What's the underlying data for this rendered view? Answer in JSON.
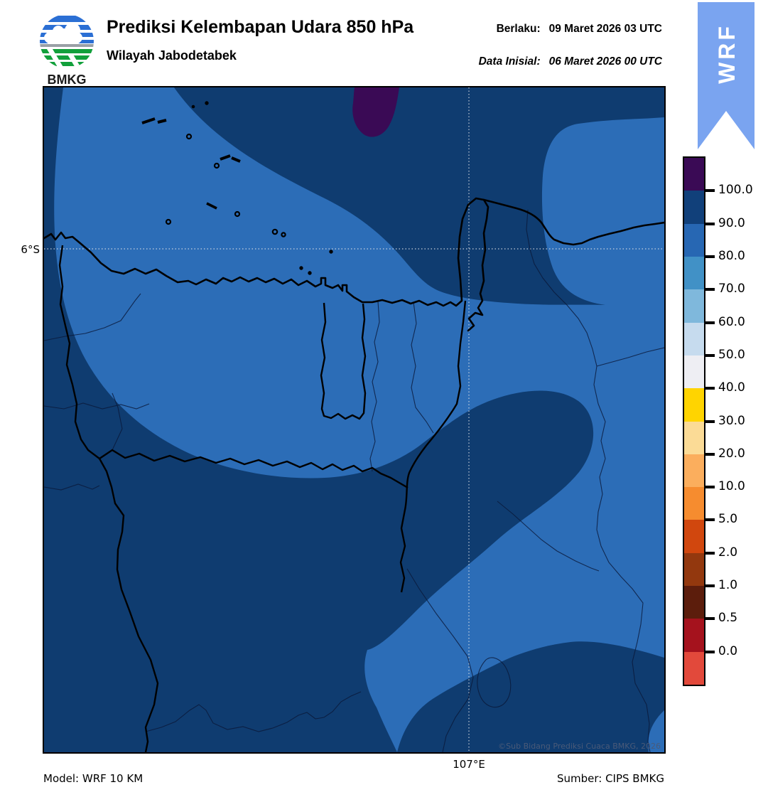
{
  "header": {
    "title": "Prediksi Kelembapan Udara 850 hPa",
    "subtitle": "Wilayah Jabodetabek",
    "valid_label": "Berlaku:",
    "valid_value": "09 Maret 2026 03 UTC",
    "init_label": "Data Inisial:",
    "init_value": "06 Maret 2026 00 UTC",
    "logo_text": "BMKG"
  },
  "ribbon": {
    "label": "WRF",
    "color": "#7aa4f0"
  },
  "map": {
    "lat_tick": "6°S",
    "lon_tick": "107°E",
    "watermark": "©Sub Bidang Prediksi Cuaca BMKG, 2026",
    "colors": {
      "rh_gt_100": "#3a0a55",
      "rh_90_100": "#0f3c70",
      "rh_80_90": "#2c6db7"
    }
  },
  "legend": {
    "tick_labels": [
      "100.0",
      "90.0",
      "80.0",
      "70.0",
      "60.0",
      "50.0",
      "40.0",
      "30.0",
      "20.0",
      "10.0",
      "5.0",
      "2.0",
      "1.0",
      "0.5",
      "0.0"
    ],
    "segment_colors_top_to_bottom": [
      "#3a0a55",
      "#11407a",
      "#2767b3",
      "#4191c6",
      "#7fb8dc",
      "#c6dbee",
      "#eeeef3",
      "#ffd400",
      "#fbdb96",
      "#fbae5d",
      "#f68c2f",
      "#d1470e",
      "#93380e",
      "#5c1d0c",
      "#a5121d",
      "#e2493b"
    ]
  },
  "footer": {
    "model": "Model: WRF 10 KM",
    "source": "Sumber: CIPS BMKG"
  }
}
